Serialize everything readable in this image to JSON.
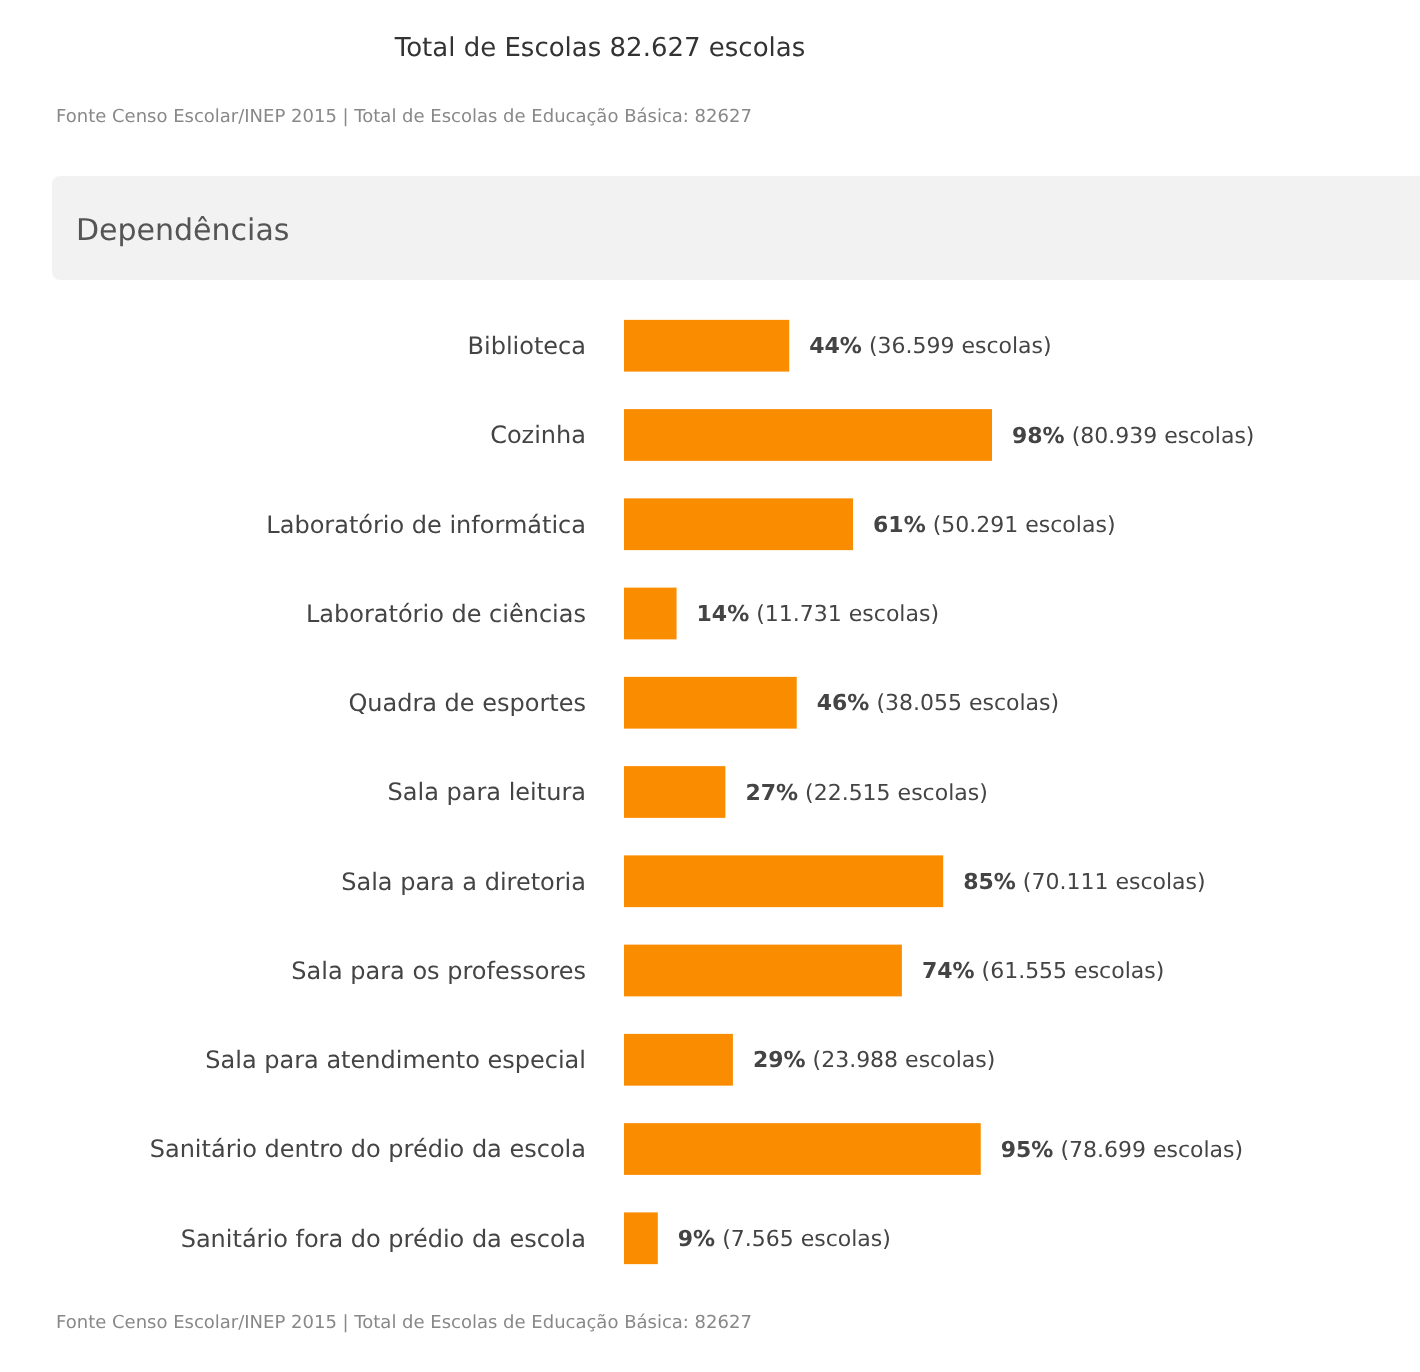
{
  "chart_data": {
    "type": "bar",
    "orientation": "horizontal",
    "title": "Total de Escolas 82.627 escolas",
    "subtitle": "Dependências",
    "annotations": [
      "Fonte Censo Escolar/INEP 2015 | Total de Escolas de Educação Básica: 82627",
      "Fonte Censo Escolar/INEP 2015 | Total de Escolas de Educação Básica: 82627"
    ],
    "categories": [
      "Biblioteca",
      "Cozinha",
      "Laboratório de informática",
      "Laboratório de ciências",
      "Quadra de esportes",
      "Sala para leitura",
      "Sala para a diretoria",
      "Sala para os professores",
      "Sala para atendimento especial",
      "Sanitário dentro do prédio da escola",
      "Sanitário fora do prédio da escola"
    ],
    "values": [
      44,
      98,
      61,
      14,
      46,
      27,
      85,
      74,
      29,
      95,
      9
    ],
    "value_labels": [
      "44% (36.599 escolas)",
      "98% (80.939 escolas)",
      "61% (50.291 escolas)",
      "14% (11.731 escolas)",
      "46% (38.055 escolas)",
      "27% (22.515 escolas)",
      "85% (70.111 escolas)",
      "74% (61.555 escolas)",
      "29% (23.988 escolas)",
      "95% (78.699 escolas)",
      "9% (7.565 escolas)"
    ],
    "color": "#fa8c00"
  }
}
